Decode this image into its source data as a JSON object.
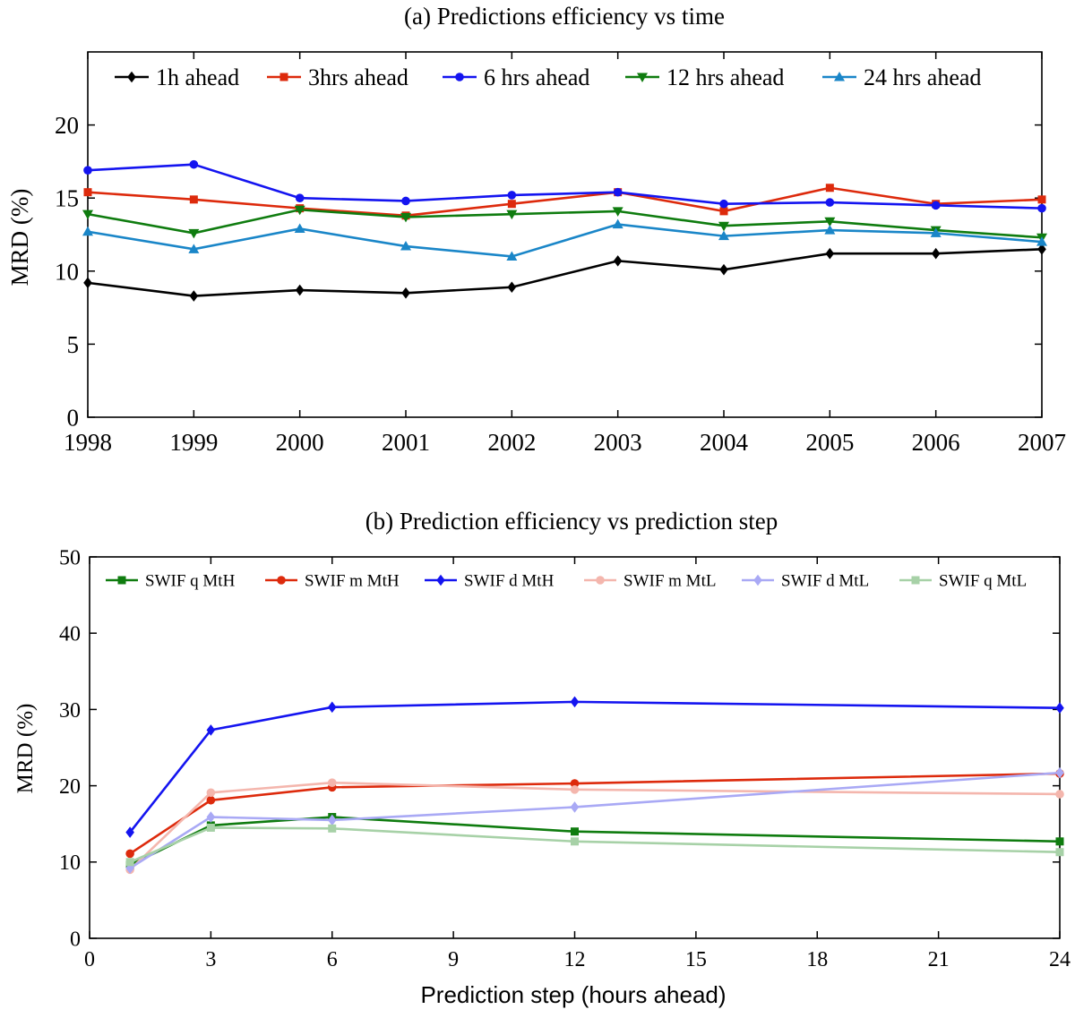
{
  "chart_data": [
    {
      "type": "line",
      "title": "(a) Predictions efficiency vs time",
      "xlabel": "",
      "ylabel": "MRD (%)",
      "xlim": [
        1998,
        2007
      ],
      "ylim": [
        0,
        25
      ],
      "x_ticks": [
        "1998",
        "1999",
        "2000",
        "2001",
        "2002",
        "2003",
        "2004",
        "2005",
        "2006",
        "2007"
      ],
      "y_ticks": [
        "0",
        "5",
        "10",
        "15",
        "20"
      ],
      "x": [
        1998,
        1999,
        2000,
        2001,
        2002,
        2003,
        2004,
        2005,
        2006,
        2007
      ],
      "legend": "top",
      "series": [
        {
          "name": "1h ahead",
          "color": "#000000",
          "marker": "diamond",
          "values": [
            9.2,
            8.3,
            8.7,
            8.5,
            8.9,
            10.7,
            10.1,
            11.2,
            11.2,
            11.5
          ]
        },
        {
          "name": "3hrs ahead",
          "color": "#dd2a0c",
          "marker": "square",
          "values": [
            15.4,
            14.9,
            14.3,
            13.8,
            14.6,
            15.4,
            14.1,
            15.7,
            14.6,
            14.9
          ]
        },
        {
          "name": "6 hrs ahead",
          "color": "#1414f0",
          "marker": "circle",
          "values": [
            16.9,
            17.3,
            15.0,
            14.8,
            15.2,
            15.4,
            14.6,
            14.7,
            14.5,
            14.3
          ]
        },
        {
          "name": "12 hrs ahead",
          "color": "#0f7c0f",
          "marker": "triangle-down",
          "values": [
            13.9,
            12.6,
            14.2,
            13.7,
            13.9,
            14.1,
            13.1,
            13.4,
            12.8,
            12.3
          ]
        },
        {
          "name": "24 hrs ahead",
          "color": "#1a86c8",
          "marker": "triangle-up",
          "values": [
            12.7,
            11.5,
            12.9,
            11.7,
            11.0,
            13.2,
            12.4,
            12.8,
            12.6,
            12.0
          ]
        }
      ]
    },
    {
      "type": "line",
      "title": "(b) Prediction efficiency vs prediction step",
      "xlabel": "Prediction step (hours ahead)",
      "ylabel": "MRD (%)",
      "xlim": [
        0,
        24
      ],
      "ylim": [
        0,
        50
      ],
      "x_ticks": [
        "0",
        "3",
        "6",
        "9",
        "12",
        "15",
        "18",
        "21",
        "24"
      ],
      "y_ticks": [
        "0",
        "10",
        "20",
        "30",
        "40",
        "50"
      ],
      "x": [
        1,
        3,
        6,
        12,
        24
      ],
      "legend": "top",
      "series": [
        {
          "name": "SWIF q MtH",
          "color": "#0f7c0f",
          "marker": "square",
          "values": [
            9.6,
            14.8,
            15.9,
            14.0,
            12.7
          ]
        },
        {
          "name": "SWIF m MtH",
          "color": "#dd2a0c",
          "marker": "circle",
          "values": [
            11.1,
            18.1,
            19.8,
            20.3,
            21.6
          ]
        },
        {
          "name": "SWIF d MtH",
          "color": "#1414f0",
          "marker": "diamond",
          "values": [
            13.9,
            27.3,
            30.3,
            31.0,
            30.2
          ]
        },
        {
          "name": "SWIF m MtL",
          "color": "#f4b6ad",
          "marker": "circle",
          "values": [
            9.0,
            19.1,
            20.4,
            19.5,
            18.9
          ]
        },
        {
          "name": "SWIF d MtL",
          "color": "#a9a9f5",
          "marker": "diamond",
          "values": [
            9.2,
            15.9,
            15.5,
            17.2,
            21.7
          ]
        },
        {
          "name": "SWIF q MtL",
          "color": "#a7d1a7",
          "marker": "square",
          "values": [
            10.0,
            14.5,
            14.4,
            12.7,
            11.3
          ]
        }
      ]
    }
  ]
}
